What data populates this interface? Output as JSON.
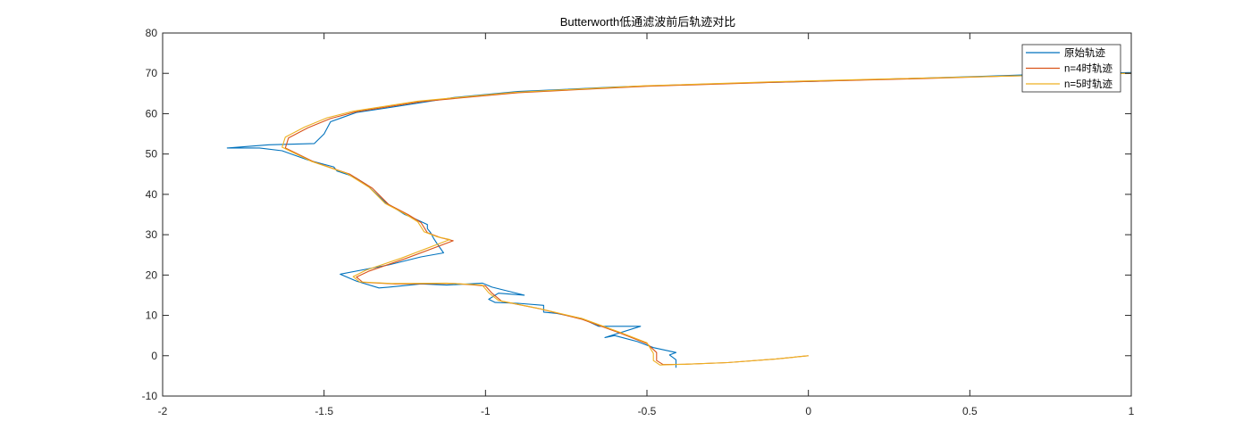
{
  "chart_data": {
    "type": "line",
    "title": "Butterworth低通滤波前后轨迹对比",
    "xlabel": "",
    "ylabel": "",
    "xlim": [
      -2,
      1
    ],
    "ylim": [
      -10,
      80
    ],
    "x_ticks": [
      -2,
      -1.5,
      -1,
      -0.5,
      0,
      0.5,
      1
    ],
    "x_tick_labels": [
      "-2",
      "-1.5",
      "-1",
      "-0.5",
      "0",
      "0.5",
      "1"
    ],
    "y_ticks": [
      -10,
      0,
      10,
      20,
      30,
      40,
      50,
      60,
      70,
      80
    ],
    "y_tick_labels": [
      "-10",
      "0",
      "10",
      "20",
      "30",
      "40",
      "50",
      "60",
      "70",
      "80"
    ],
    "grid": false,
    "legend_position": "top-right",
    "series": [
      {
        "name": "原始轨迹",
        "color": "#0072BD",
        "points": [
          [
            -0.41,
            -3.0
          ],
          [
            -0.41,
            -1.0
          ],
          [
            -0.43,
            0.2
          ],
          [
            -0.41,
            0.8
          ],
          [
            -0.48,
            2.0
          ],
          [
            -0.53,
            3.5
          ],
          [
            -0.6,
            5.0
          ],
          [
            -0.63,
            4.5
          ],
          [
            -0.52,
            7.3
          ],
          [
            -0.65,
            7.3
          ],
          [
            -0.7,
            9.2
          ],
          [
            -0.78,
            10.5
          ],
          [
            -0.82,
            10.8
          ],
          [
            -0.82,
            12.5
          ],
          [
            -0.9,
            13.0
          ],
          [
            -0.97,
            13.2
          ],
          [
            -0.99,
            14.0
          ],
          [
            -0.96,
            15.5
          ],
          [
            -0.88,
            15.0
          ],
          [
            -0.93,
            16.0
          ],
          [
            -0.98,
            17.0
          ],
          [
            -1.01,
            18.0
          ],
          [
            -1.12,
            17.5
          ],
          [
            -1.2,
            17.8
          ],
          [
            -1.3,
            17.0
          ],
          [
            -1.33,
            16.8
          ],
          [
            -1.4,
            18.5
          ],
          [
            -1.45,
            20.2
          ],
          [
            -1.3,
            22.5
          ],
          [
            -1.2,
            24.5
          ],
          [
            -1.13,
            25.5
          ],
          [
            -1.15,
            27.8
          ],
          [
            -1.16,
            29.0
          ],
          [
            -1.17,
            30.5
          ],
          [
            -1.18,
            31.5
          ],
          [
            -1.18,
            32.5
          ],
          [
            -1.22,
            34.0
          ],
          [
            -1.25,
            35.0
          ],
          [
            -1.28,
            36.5
          ],
          [
            -1.31,
            38.0
          ],
          [
            -1.33,
            39.5
          ],
          [
            -1.35,
            41.0
          ],
          [
            -1.37,
            42.5
          ],
          [
            -1.4,
            44.0
          ],
          [
            -1.43,
            45.0
          ],
          [
            -1.46,
            45.8
          ],
          [
            -1.47,
            46.8
          ],
          [
            -1.55,
            48.5
          ],
          [
            -1.63,
            50.8
          ],
          [
            -1.7,
            51.5
          ],
          [
            -1.8,
            51.5
          ],
          [
            -1.67,
            52.3
          ],
          [
            -1.53,
            52.6
          ],
          [
            -1.5,
            55.0
          ],
          [
            -1.48,
            58.0
          ],
          [
            -1.4,
            60.3
          ],
          [
            -1.3,
            61.5
          ],
          [
            -1.1,
            64.0
          ],
          [
            -0.9,
            65.5
          ],
          [
            -0.6,
            66.6
          ],
          [
            -0.3,
            67.4
          ],
          [
            0.0,
            68.0
          ],
          [
            0.3,
            68.7
          ],
          [
            0.55,
            69.3
          ],
          [
            0.75,
            69.8
          ],
          [
            1.0,
            70.2
          ]
        ]
      },
      {
        "name": "n=4时轨迹",
        "color": "#D95319",
        "points": [
          [
            0.0,
            0.0
          ],
          [
            -0.1,
            -0.8
          ],
          [
            -0.25,
            -1.7
          ],
          [
            -0.38,
            -2.1
          ],
          [
            -0.45,
            -2.2
          ],
          [
            -0.47,
            -1.2
          ],
          [
            -0.47,
            0.8
          ],
          [
            -0.5,
            3.0
          ],
          [
            -0.58,
            5.5
          ],
          [
            -0.7,
            9.0
          ],
          [
            -0.83,
            11.6
          ],
          [
            -0.95,
            13.5
          ],
          [
            -0.98,
            15.5
          ],
          [
            -1.0,
            17.3
          ],
          [
            -1.1,
            17.9
          ],
          [
            -1.28,
            17.8
          ],
          [
            -1.38,
            18.2
          ],
          [
            -1.4,
            19.5
          ],
          [
            -1.36,
            21.0
          ],
          [
            -1.25,
            24.0
          ],
          [
            -1.1,
            28.5
          ],
          [
            -1.14,
            29.3
          ],
          [
            -1.18,
            30.5
          ],
          [
            -1.2,
            33.0
          ],
          [
            -1.24,
            35.0
          ],
          [
            -1.3,
            37.5
          ],
          [
            -1.35,
            41.5
          ],
          [
            -1.42,
            45.0
          ],
          [
            -1.53,
            48.0
          ],
          [
            -1.62,
            51.5
          ],
          [
            -1.61,
            54.0
          ],
          [
            -1.55,
            56.5
          ],
          [
            -1.48,
            58.8
          ],
          [
            -1.4,
            60.5
          ],
          [
            -1.2,
            63.0
          ],
          [
            -0.9,
            65.2
          ],
          [
            -0.5,
            66.8
          ],
          [
            -0.1,
            67.8
          ],
          [
            0.3,
            68.6
          ],
          [
            0.6,
            69.3
          ],
          [
            1.0,
            70.0
          ]
        ]
      },
      {
        "name": "n=5时轨迹",
        "color": "#EDB120",
        "points": [
          [
            0.0,
            0.0
          ],
          [
            -0.1,
            -0.8
          ],
          [
            -0.25,
            -1.7
          ],
          [
            -0.38,
            -2.1
          ],
          [
            -0.46,
            -2.3
          ],
          [
            -0.48,
            -1.2
          ],
          [
            -0.48,
            0.6
          ],
          [
            -0.5,
            3.2
          ],
          [
            -0.58,
            5.7
          ],
          [
            -0.7,
            9.2
          ],
          [
            -0.84,
            11.8
          ],
          [
            -0.96,
            13.7
          ],
          [
            -0.99,
            15.6
          ],
          [
            -1.01,
            17.5
          ],
          [
            -1.12,
            18.0
          ],
          [
            -1.29,
            17.9
          ],
          [
            -1.39,
            18.3
          ],
          [
            -1.41,
            19.6
          ],
          [
            -1.37,
            21.2
          ],
          [
            -1.26,
            24.2
          ],
          [
            -1.11,
            28.8
          ],
          [
            -1.15,
            29.5
          ],
          [
            -1.19,
            30.7
          ],
          [
            -1.21,
            33.2
          ],
          [
            -1.25,
            35.2
          ],
          [
            -1.31,
            37.7
          ],
          [
            -1.36,
            41.7
          ],
          [
            -1.43,
            45.2
          ],
          [
            -1.54,
            48.2
          ],
          [
            -1.63,
            51.7
          ],
          [
            -1.62,
            54.2
          ],
          [
            -1.56,
            56.7
          ],
          [
            -1.49,
            59.0
          ],
          [
            -1.41,
            60.6
          ],
          [
            -1.21,
            63.1
          ],
          [
            -0.91,
            65.3
          ],
          [
            -0.51,
            66.9
          ],
          [
            -0.11,
            67.9
          ],
          [
            0.29,
            68.7
          ],
          [
            0.6,
            69.3
          ],
          [
            1.0,
            70.0
          ]
        ]
      }
    ]
  }
}
